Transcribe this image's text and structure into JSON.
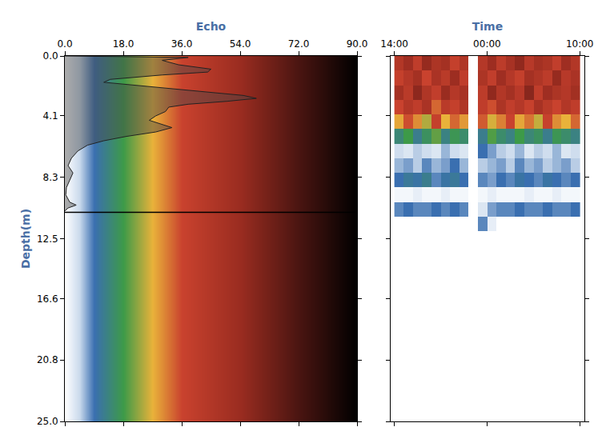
{
  "chart_data": [
    {
      "type": "area",
      "x_label": "Echo",
      "y_label": "Depth(m)",
      "x": [
        0,
        38,
        30,
        35,
        45,
        44,
        30,
        14,
        12,
        22,
        30,
        45,
        55,
        59,
        50,
        38,
        32,
        31,
        28,
        26,
        30,
        33,
        28,
        19,
        12,
        7,
        4,
        2,
        1,
        2.5,
        1.5,
        0.5,
        0.3,
        1.5,
        3.5,
        1,
        0
      ],
      "y": [
        0.0,
        0.1,
        0.3,
        0.6,
        0.9,
        1.1,
        1.3,
        1.6,
        1.8,
        2.0,
        2.2,
        2.5,
        2.7,
        2.9,
        3.1,
        3.3,
        3.5,
        3.8,
        4.1,
        4.4,
        4.7,
        4.9,
        5.2,
        5.5,
        5.8,
        6.1,
        6.5,
        7.0,
        7.5,
        8.0,
        8.5,
        9.0,
        9.5,
        10.0,
        10.2,
        10.4,
        10.6
      ],
      "bottom_line": 10.7,
      "xlim": [
        0,
        90
      ],
      "xticks": [
        {
          "value": 0,
          "label": "0.0"
        },
        {
          "value": 18,
          "label": "18.0"
        },
        {
          "value": 36,
          "label": "36.0"
        },
        {
          "value": 54,
          "label": "54.0"
        },
        {
          "value": 72,
          "label": "72.0"
        },
        {
          "value": 90,
          "label": "90.0"
        }
      ],
      "ylim": [
        25,
        0
      ],
      "yticks": [
        {
          "value": 0,
          "label": "0.0"
        },
        4.1,
        8.3,
        12.5,
        16.6,
        20.8,
        {
          "value": 25,
          "label": "25.0"
        }
      ]
    },
    {
      "type": "heatmap",
      "x_label": "Time",
      "x": [
        14.5,
        15.5,
        16.5,
        17.5,
        18.5,
        19.5,
        20.5,
        21.5,
        22.5,
        23.5,
        24.5,
        25.5,
        26.5,
        27.5,
        28.5,
        29.5,
        30.5,
        31.5,
        32.5,
        33.5
      ],
      "y": [
        0.5,
        1.5,
        2.5,
        3.5,
        4.5,
        5.5,
        6.5,
        7.5,
        8.5,
        9.5,
        10.5,
        11.5
      ],
      "z": [
        [
          45,
          52,
          40,
          55,
          47,
          50,
          38,
          46,
          null,
          44,
          53,
          41,
          49,
          56,
          43,
          50,
          47,
          39,
          52,
          45
        ],
        [
          38,
          44,
          50,
          36,
          48,
          42,
          53,
          40,
          null,
          47,
          39,
          52,
          44,
          38,
          50,
          46,
          41,
          55,
          43,
          48
        ],
        [
          50,
          42,
          57,
          46,
          39,
          54,
          44,
          49,
          null,
          41,
          56,
          45,
          50,
          43,
          58,
          40,
          52,
          47,
          44,
          51
        ],
        [
          36,
          45,
          40,
          48,
          33,
          42,
          38,
          46,
          null,
          40,
          35,
          47,
          39,
          44,
          37,
          49,
          42,
          36,
          45,
          40
        ],
        [
          28,
          35,
          30,
          24,
          38,
          27,
          33,
          29,
          null,
          34,
          26,
          31,
          36,
          28,
          32,
          25,
          37,
          30,
          27,
          33
        ],
        [
          14,
          18,
          12,
          16,
          20,
          13,
          17,
          15,
          null,
          12,
          19,
          15,
          13,
          18,
          14,
          16,
          12,
          17,
          15,
          13
        ],
        [
          4,
          3,
          5,
          4,
          3,
          6,
          4,
          3,
          null,
          9,
          7,
          5,
          4,
          6,
          3,
          5,
          4,
          6,
          3,
          4
        ],
        [
          6,
          7,
          5,
          8,
          6,
          7,
          9,
          6,
          null,
          5,
          6,
          7,
          5,
          8,
          6,
          7,
          5,
          6,
          7,
          5
        ],
        [
          9,
          11,
          10,
          12,
          8,
          10,
          11,
          9,
          null,
          8,
          7,
          9,
          8,
          10,
          9,
          8,
          10,
          9,
          8,
          9
        ],
        [
          1,
          1,
          2,
          1,
          1,
          2,
          1,
          1,
          null,
          1,
          2,
          1,
          1,
          1,
          2,
          1,
          1,
          2,
          1,
          1
        ],
        [
          8,
          9,
          8,
          8,
          9,
          8,
          9,
          8,
          null,
          3,
          7,
          8,
          8,
          9,
          8,
          8,
          9,
          8,
          8,
          9
        ],
        [
          0,
          0,
          0,
          0,
          0,
          0,
          0,
          0,
          null,
          8,
          2,
          0,
          0,
          0,
          0,
          0,
          0,
          0,
          0,
          0
        ]
      ],
      "zlim": [
        0,
        90
      ],
      "xlim": [
        13.6,
        34.5
      ],
      "xticks": [
        {
          "value": 14,
          "label": "14:00"
        },
        {
          "value": 24,
          "label": "00:00"
        },
        {
          "value": 34,
          "label": "10:00"
        }
      ],
      "ylim": [
        25,
        0
      ],
      "yticks": [
        {
          "value": 0,
          "label": "0.0"
        },
        4.1,
        8.3,
        12.5,
        16.6,
        20.8,
        {
          "value": 25,
          "label": "25.0"
        }
      ],
      "tick_labels": "x"
    }
  ]
}
